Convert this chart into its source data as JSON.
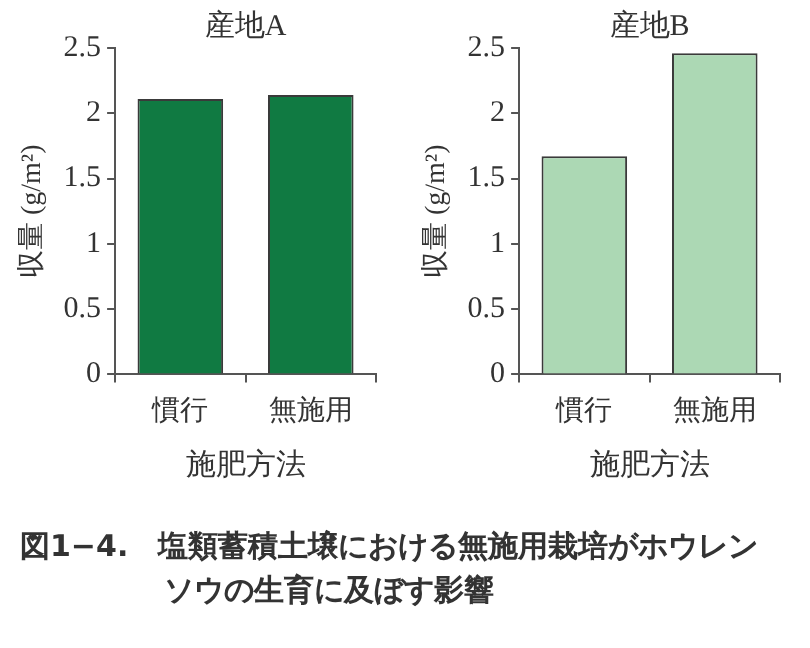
{
  "chart_data": [
    {
      "type": "bar",
      "title": "産地A",
      "xlabel": "施肥方法",
      "ylabel": "収量 (g/m²)",
      "categories": [
        "慣行",
        "無施用"
      ],
      "series": [
        {
          "color": "#107a42",
          "values": [
            2.11,
            2.14
          ]
        }
      ],
      "ylim": [
        0,
        2.5
      ],
      "yticks": [
        0,
        0.5,
        1,
        1.5,
        2,
        2.5
      ],
      "grid": false,
      "legend": false,
      "annotations": [
        "図1−4.　塩類蓄積土壌における無施用栽培がホウレンソウの生育に及ぼす影響"
      ]
    },
    {
      "type": "bar",
      "title": "産地B",
      "xlabel": "施肥方法",
      "ylabel": "収量 (g/m²)",
      "categories": [
        "慣行",
        "無施用"
      ],
      "series": [
        {
          "color": "#acd8b4",
          "values": [
            1.67,
            2.46
          ]
        }
      ],
      "ylim": [
        0,
        2.5
      ],
      "yticks": [
        0,
        0.5,
        1,
        1.5,
        2,
        2.5
      ],
      "grid": false,
      "legend": false
    }
  ]
}
